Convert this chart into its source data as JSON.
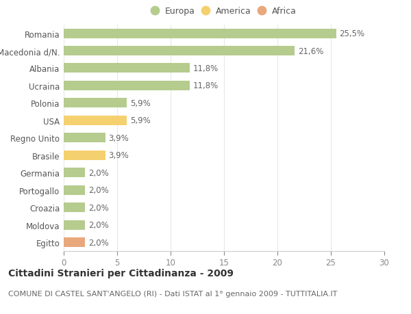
{
  "countries": [
    "Romania",
    "Macedonia d/N.",
    "Albania",
    "Ucraina",
    "Polonia",
    "USA",
    "Regno Unito",
    "Brasile",
    "Germania",
    "Portogallo",
    "Croazia",
    "Moldova",
    "Egitto"
  ],
  "values": [
    25.5,
    21.6,
    11.8,
    11.8,
    5.9,
    5.9,
    3.9,
    3.9,
    2.0,
    2.0,
    2.0,
    2.0,
    2.0
  ],
  "labels": [
    "25,5%",
    "21,6%",
    "11,8%",
    "11,8%",
    "5,9%",
    "5,9%",
    "3,9%",
    "3,9%",
    "2,0%",
    "2,0%",
    "2,0%",
    "2,0%",
    "2,0%"
  ],
  "continent": [
    "Europa",
    "Europa",
    "Europa",
    "Europa",
    "Europa",
    "America",
    "Europa",
    "America",
    "Europa",
    "Europa",
    "Europa",
    "Europa",
    "Africa"
  ],
  "colors": {
    "Europa": "#b5cc8e",
    "America": "#f5d06e",
    "Africa": "#e8a87c"
  },
  "title": "Cittadini Stranieri per Cittadinanza - 2009",
  "subtitle": "COMUNE DI CASTEL SANT'ANGELO (RI) - Dati ISTAT al 1° gennaio 2009 - TUTTITALIA.IT",
  "xlim": [
    0,
    30
  ],
  "xticks": [
    0,
    5,
    10,
    15,
    20,
    25,
    30
  ],
  "background_color": "#ffffff",
  "grid_color": "#e8e8e8",
  "bar_height": 0.55,
  "title_fontsize": 10,
  "subtitle_fontsize": 8,
  "tick_fontsize": 8.5,
  "label_fontsize": 8.5,
  "legend_fontsize": 9
}
